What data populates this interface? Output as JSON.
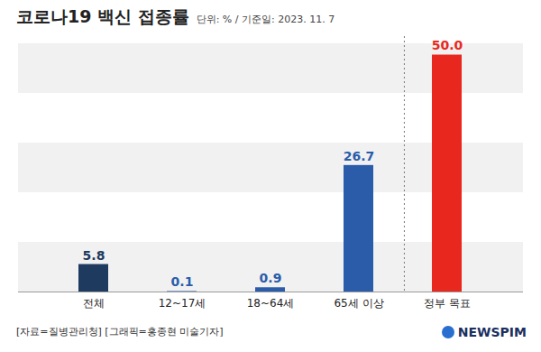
{
  "chart_data": {
    "type": "bar",
    "title": "코로나19 백신 접종률",
    "subtitle": "단위: % / 기준일: 2023. 11. 7",
    "categories": [
      "전체",
      "12~17세",
      "18~64세",
      "65세 이상",
      "정부 목표"
    ],
    "values": [
      5.8,
      0.1,
      0.9,
      26.7,
      50.0
    ],
    "value_labels": [
      "5.8",
      "0.1",
      "0.9",
      "26.7",
      "50.0"
    ],
    "colors": [
      "#1e3a5f",
      "#2a5caa",
      "#2a5caa",
      "#2a5caa",
      "#e8281e"
    ],
    "ylim": [
      0,
      52
    ],
    "data_labels": true,
    "tick_labels": "x",
    "caption": "[자료=질병관리청] [그래픽=홍종현 미술기자]",
    "logo": "NEWSPIM"
  }
}
